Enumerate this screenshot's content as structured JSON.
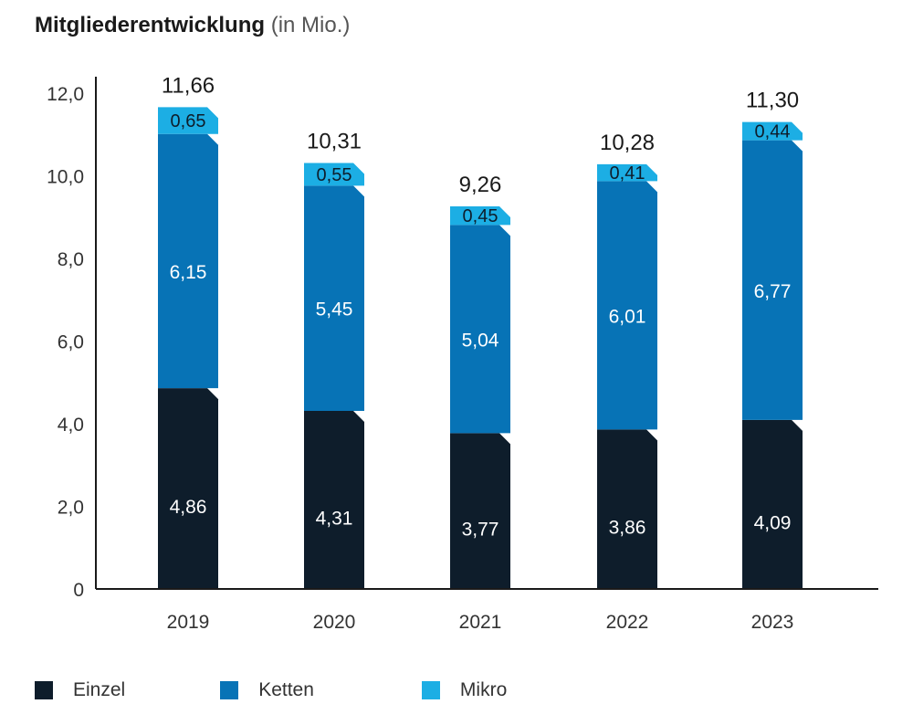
{
  "title": {
    "main": "Mitgliederentwicklung",
    "sub": "(in Mio.)"
  },
  "colors": {
    "einzel": "#0e1d2b",
    "ketten": "#0773b6",
    "mikro": "#1caee4"
  },
  "chart_data": {
    "type": "bar",
    "stacked": true,
    "categories": [
      "2019",
      "2020",
      "2021",
      "2022",
      "2023"
    ],
    "series": [
      {
        "name": "Einzel",
        "values": [
          4.86,
          4.31,
          3.77,
          3.86,
          4.09
        ],
        "labels": [
          "4,86",
          "4,31",
          "3,77",
          "3,86",
          "4,09"
        ]
      },
      {
        "name": "Ketten",
        "values": [
          6.15,
          5.45,
          5.04,
          6.01,
          6.77
        ],
        "labels": [
          "6,15",
          "5,45",
          "5,04",
          "6,01",
          "6,77"
        ]
      },
      {
        "name": "Mikro",
        "values": [
          0.65,
          0.55,
          0.45,
          0.41,
          0.44
        ],
        "labels": [
          "0,65",
          "0,55",
          "0,45",
          "0,41",
          "0,44"
        ]
      }
    ],
    "totals": [
      11.66,
      10.31,
      9.26,
      10.28,
      11.3
    ],
    "total_labels": [
      "11,66",
      "10,31",
      "9,26",
      "10,28",
      "11,30"
    ],
    "ylim": [
      0,
      12
    ],
    "yticks": [
      0,
      2,
      4,
      6,
      8,
      10,
      12
    ],
    "ytick_labels": [
      "0",
      "2,0",
      "4,0",
      "6,0",
      "8,0",
      "10,0",
      "12,0"
    ],
    "legend_position": "bottom-left"
  },
  "legend": [
    {
      "label": "Einzel",
      "color_key": "einzel"
    },
    {
      "label": "Ketten",
      "color_key": "ketten"
    },
    {
      "label": "Mikro",
      "color_key": "mikro"
    }
  ]
}
